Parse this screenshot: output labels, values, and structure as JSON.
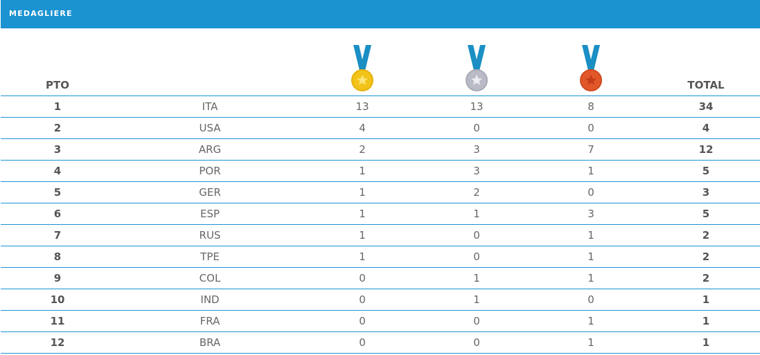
{
  "header": {
    "title": "MEDAGLIERE"
  },
  "columns": {
    "rank": "PTO",
    "total": "TOTAL"
  },
  "colors": {
    "header_bg": "#1b93d1",
    "gold": "#f2c318",
    "silver": "#b9bcc6",
    "bronze": "#e2572a",
    "ribbon": "#1b8fc4"
  },
  "icons": {
    "gold": "gold-medal-icon",
    "silver": "silver-medal-icon",
    "bronze": "bronze-medal-icon"
  },
  "rows": [
    {
      "rank": "1",
      "nation": "ITA",
      "gold": "13",
      "silver": "13",
      "bronze": "8",
      "total": "34"
    },
    {
      "rank": "2",
      "nation": "USA",
      "gold": "4",
      "silver": "0",
      "bronze": "0",
      "total": "4"
    },
    {
      "rank": "3",
      "nation": "ARG",
      "gold": "2",
      "silver": "3",
      "bronze": "7",
      "total": "12"
    },
    {
      "rank": "4",
      "nation": "POR",
      "gold": "1",
      "silver": "3",
      "bronze": "1",
      "total": "5"
    },
    {
      "rank": "5",
      "nation": "GER",
      "gold": "1",
      "silver": "2",
      "bronze": "0",
      "total": "3"
    },
    {
      "rank": "6",
      "nation": "ESP",
      "gold": "1",
      "silver": "1",
      "bronze": "3",
      "total": "5"
    },
    {
      "rank": "7",
      "nation": "RUS",
      "gold": "1",
      "silver": "0",
      "bronze": "1",
      "total": "2"
    },
    {
      "rank": "8",
      "nation": "TPE",
      "gold": "1",
      "silver": "0",
      "bronze": "1",
      "total": "2"
    },
    {
      "rank": "9",
      "nation": "COL",
      "gold": "0",
      "silver": "1",
      "bronze": "1",
      "total": "2"
    },
    {
      "rank": "10",
      "nation": "IND",
      "gold": "0",
      "silver": "1",
      "bronze": "0",
      "total": "1"
    },
    {
      "rank": "11",
      "nation": "FRA",
      "gold": "0",
      "silver": "0",
      "bronze": "1",
      "total": "1"
    },
    {
      "rank": "12",
      "nation": "BRA",
      "gold": "0",
      "silver": "0",
      "bronze": "1",
      "total": "1"
    }
  ]
}
